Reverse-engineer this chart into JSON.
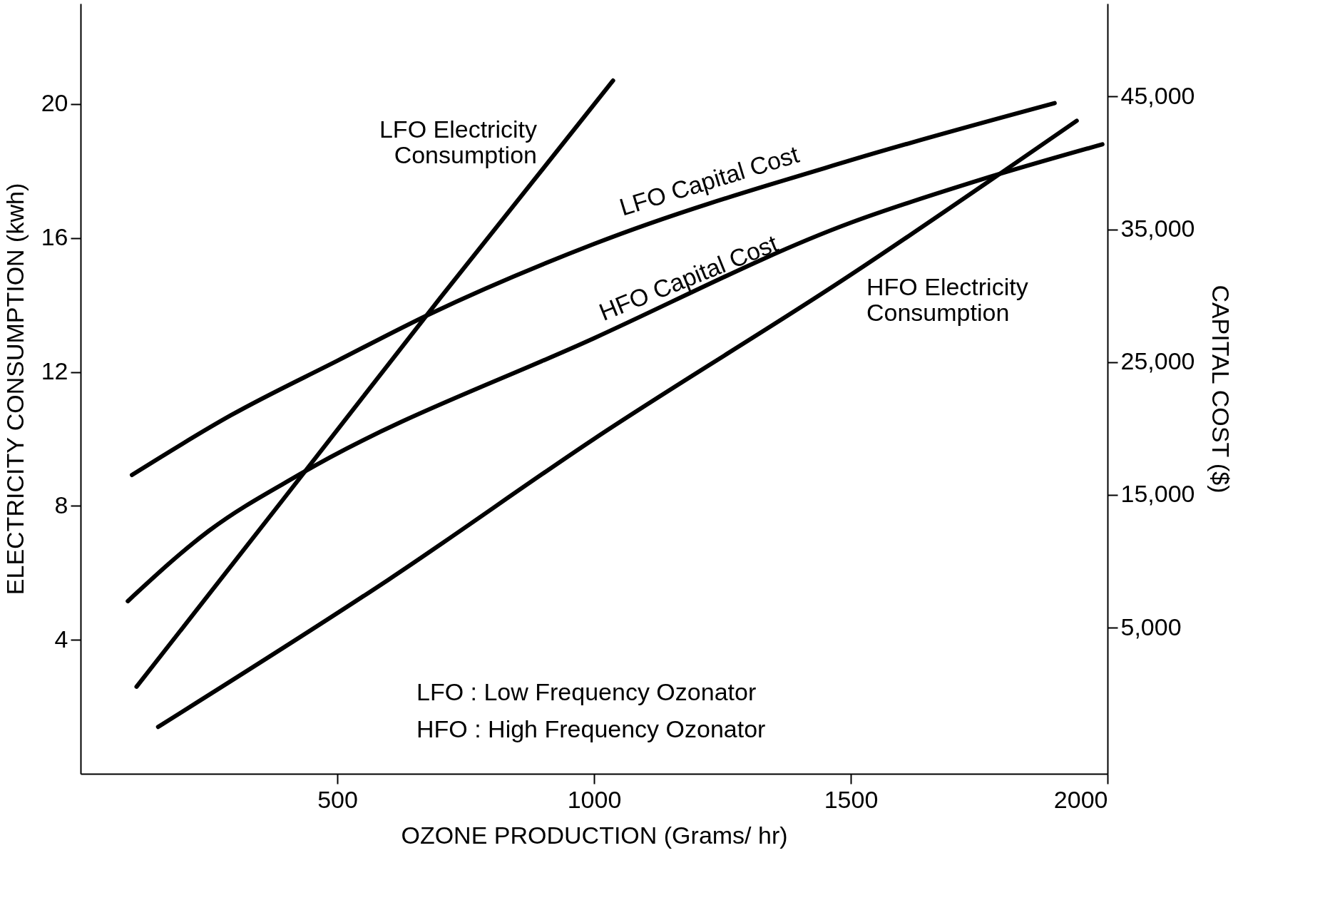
{
  "chart_data": {
    "type": "line",
    "xlabel": "OZONE  PRODUCTION  (Grams/ hr)",
    "ylabel": "ELECTRICITY  CONSUMPTION (kwh)",
    "y2label": "CAPITAL  COST  ($)",
    "xlim": [
      0,
      2000
    ],
    "xticks": [
      500,
      1000,
      1500,
      2000
    ],
    "ylim": [
      0,
      23
    ],
    "yticks": [
      4,
      8,
      12,
      16,
      20
    ],
    "y2lim": [
      -6000,
      52000
    ],
    "y2ticks": [
      {
        "value": 5000,
        "label": "5,000"
      },
      {
        "value": 15000,
        "label": "15,000"
      },
      {
        "value": 25000,
        "label": "25,000"
      },
      {
        "value": 35000,
        "label": "35,000"
      },
      {
        "value": 45000,
        "label": "45,000"
      }
    ],
    "grid": false,
    "series": [
      {
        "name": "LFO  Electricity Consumption",
        "color": "#000000",
        "x": [
          109,
          400,
          700,
          1037
        ],
        "values": [
          2.6,
          8.3,
          14.2,
          20.7
        ]
      },
      {
        "name": "HFO  Electricity Consumption",
        "color": "#000000",
        "x": [
          151,
          600,
          1000,
          1500,
          1940
        ],
        "values": [
          1.4,
          5.8,
          10.0,
          14.9,
          19.5
        ]
      },
      {
        "name": "LFO  Capital Cost",
        "color": "#000000",
        "axis": "y2",
        "x": [
          100,
          293,
          500,
          679,
          1000,
          1500,
          1897
        ],
        "values": [
          16500,
          21000,
          25100,
          28600,
          33900,
          40200,
          44500
        ]
      },
      {
        "name": "HFO  Capital Cost",
        "color": "#000000",
        "axis": "y2",
        "x": [
          92,
          250,
          429,
          1000,
          1500,
          1750,
          1990
        ],
        "values": [
          7000,
          12300,
          16600,
          26800,
          35500,
          38700,
          41400
        ]
      }
    ],
    "line_style": "solid",
    "marker": "none",
    "annotations": [
      "LFO :  Low Frequency Ozonator",
      "HFO :  High Frequency Ozonator"
    ]
  }
}
